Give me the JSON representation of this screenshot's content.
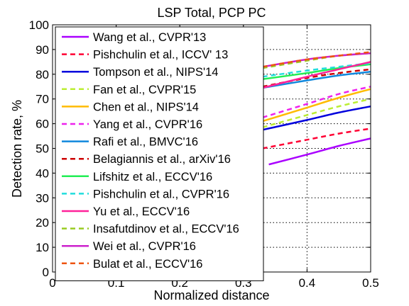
{
  "chart_data": {
    "type": "line",
    "title": "LSP Total, PCP PC",
    "xlabel": "Normalized distance",
    "ylabel": "Detection rate, %",
    "xlim": [
      0,
      0.5
    ],
    "ylim": [
      0,
      100
    ],
    "xticks": [
      "0",
      "0.1",
      "0.2",
      "0.3",
      "0.4",
      "0.5"
    ],
    "yticks": [
      "0",
      "10",
      "20",
      "30",
      "40",
      "50",
      "60",
      "70",
      "80",
      "90",
      "100"
    ],
    "grid": true,
    "legend_position": "top-left",
    "series": [
      {
        "name": "Wang et al., CVPR'13",
        "color": "#aa00ff",
        "dash": "solid",
        "x": [
          0.34,
          0.4,
          0.45,
          0.5
        ],
        "y": [
          43.5,
          47.5,
          51,
          54
        ]
      },
      {
        "name": "Pishchulin et al., ICCV' 13",
        "color": "#ff0033",
        "dash": "dashed",
        "x": [
          0.33,
          0.4,
          0.45,
          0.5
        ],
        "y": [
          50,
          53.5,
          56,
          58
        ]
      },
      {
        "name": "Tompson et al., NIPS'14",
        "color": "#0000dd",
        "dash": "solid",
        "x": [
          0.33,
          0.4,
          0.45,
          0.5
        ],
        "y": [
          57.5,
          61.5,
          64.5,
          67
        ]
      },
      {
        "name": "Fan et al., CVPR'15",
        "color": "#bbee33",
        "dash": "dashed",
        "x": [
          0.33,
          0.4,
          0.45,
          0.5
        ],
        "y": [
          58.5,
          63.5,
          67,
          70
        ]
      },
      {
        "name": "Chen et al., NIPS'14",
        "color": "#ffbb00",
        "dash": "solid",
        "x": [
          0.33,
          0.4,
          0.45,
          0.5
        ],
        "y": [
          61,
          66.5,
          70.5,
          74
        ]
      },
      {
        "name": "Yang et al., CVPR'16",
        "color": "#ee22ee",
        "dash": "dashed",
        "x": [
          0.33,
          0.4,
          0.45,
          0.5
        ],
        "y": [
          62.5,
          68,
          72,
          75
        ]
      },
      {
        "name": "Rafi et al., BMVC'16",
        "color": "#1188dd",
        "dash": "solid",
        "x": [
          0.33,
          0.4,
          0.45,
          0.5
        ],
        "y": [
          74.5,
          77.5,
          79.5,
          81
        ]
      },
      {
        "name": "Belagiannis et al., arXiv'16",
        "color": "#cc0000",
        "dash": "dashed",
        "x": [
          0.33,
          0.4,
          0.45,
          0.5
        ],
        "y": [
          75,
          78.5,
          80.5,
          82
        ]
      },
      {
        "name": "Lifshitz et al., ECCV'16",
        "color": "#22ee55",
        "dash": "solid",
        "x": [
          0.33,
          0.4,
          0.45,
          0.5
        ],
        "y": [
          78,
          80.5,
          82.5,
          84
        ]
      },
      {
        "name": "Pishchulin et al., CVPR'16",
        "color": "#22dddd",
        "dash": "dashed",
        "x": [
          0.33,
          0.4,
          0.45,
          0.5
        ],
        "y": [
          79,
          81.5,
          83,
          84.5
        ]
      },
      {
        "name": "Yu et al., ECCV'16",
        "color": "#ff2299",
        "dash": "solid",
        "x": [
          0.33,
          0.4,
          0.45,
          0.5
        ],
        "y": [
          74.5,
          79,
          82,
          85
        ]
      },
      {
        "name": "Insafutdinov et al., ECCV'16",
        "color": "#99cc22",
        "dash": "dashed",
        "x": [
          0.33,
          0.4,
          0.45,
          0.5
        ],
        "y": [
          82.5,
          85.5,
          87.5,
          88.5
        ]
      },
      {
        "name": "Wei et al., CVPR'16",
        "color": "#cc22cc",
        "dash": "solid",
        "x": [
          0.33,
          0.4,
          0.45,
          0.5
        ],
        "y": [
          83,
          86,
          87.5,
          88.5
        ]
      },
      {
        "name": "Bulat et al., ECCV'16",
        "color": "#ee5511",
        "dash": "dashed",
        "x": [
          0.33,
          0.4,
          0.45,
          0.5
        ],
        "y": [
          83,
          86,
          87.5,
          89
        ]
      }
    ]
  }
}
